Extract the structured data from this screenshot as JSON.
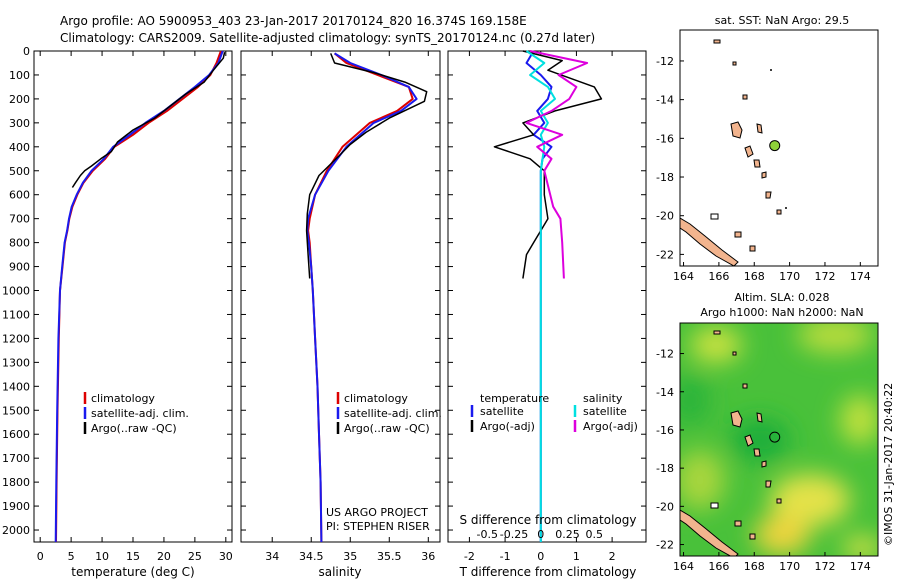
{
  "header": {
    "line1": "Argo profile: AO 5900953_403 23-Jan-2017 20170124_820 16.374S 169.158E",
    "line2": "Climatology: CARS2009. Satellite-adjusted climatology: synTS_20170124.nc (0.27d later)"
  },
  "colors": {
    "climatology": "#dd0000",
    "satellite": "#1a1aee",
    "argo": "#000000",
    "salinity_satellite": "#00e0e0",
    "salinity_argo": "#dd00dd",
    "land": "#f2b48e",
    "float_marker": "#8fd13a"
  },
  "chart_data": [
    {
      "type": "line",
      "id": "temperature",
      "xlabel": "temperature (deg C)",
      "xlim": [
        -1,
        31
      ],
      "ylim": [
        2050,
        0
      ],
      "xticks": [
        0,
        5,
        10,
        15,
        20,
        25,
        30
      ],
      "yticks": [
        0,
        100,
        200,
        300,
        400,
        500,
        600,
        700,
        800,
        900,
        1000,
        1100,
        1200,
        1300,
        1400,
        1500,
        1600,
        1700,
        1800,
        1900,
        2000
      ],
      "legend": [
        "climatology",
        "satellite-adj. clim.",
        "Argo(..raw -QC)"
      ],
      "series": [
        {
          "name": "climatology",
          "x": [
            29.2,
            28.5,
            27.5,
            25.5,
            23,
            20.5,
            17.5,
            15,
            12,
            10.5,
            8.5,
            7,
            6,
            5.2,
            4.7,
            4.4,
            4.0,
            3.6,
            3.2,
            3.0,
            2.8,
            2.65,
            2.55
          ],
          "y": [
            0,
            50,
            100,
            150,
            200,
            250,
            300,
            350,
            400,
            450,
            500,
            550,
            600,
            650,
            700,
            750,
            800,
            900,
            1000,
            1200,
            1500,
            1800,
            2050
          ]
        },
        {
          "name": "satellite-adj. clim.",
          "x": [
            29.5,
            28.8,
            27.3,
            25,
            22.5,
            20,
            17,
            14.5,
            11.8,
            10.3,
            8.3,
            6.9,
            5.9,
            5.1,
            4.65,
            4.35,
            3.95,
            3.55,
            3.2,
            2.95,
            2.75,
            2.6,
            2.5
          ],
          "y": [
            0,
            50,
            100,
            150,
            200,
            250,
            300,
            350,
            400,
            450,
            500,
            550,
            600,
            650,
            700,
            750,
            800,
            900,
            1000,
            1200,
            1500,
            1800,
            2050
          ]
        },
        {
          "name": "Argo(..raw -QC)",
          "x": [
            29.8,
            29.6,
            28,
            26.5,
            23.5,
            21,
            18.5,
            15,
            12.5,
            11.5,
            9.8,
            8.3,
            7.2,
            6.5,
            5.7,
            5.2
          ],
          "y": [
            5,
            30,
            80,
            130,
            180,
            230,
            280,
            330,
            380,
            420,
            450,
            480,
            500,
            520,
            550,
            570
          ]
        }
      ]
    },
    {
      "type": "line",
      "id": "salinity",
      "xlabel": "salinity",
      "xlim": [
        33.6,
        36.15
      ],
      "ylim": [
        2050,
        0
      ],
      "xticks": [
        34,
        34.5,
        35,
        35.5,
        36
      ],
      "legend": [
        "climatology",
        "satellite-adj. clim.",
        "Argo(..raw -QC)"
      ],
      "series": [
        {
          "name": "climatology",
          "x": [
            34.8,
            34.95,
            35.35,
            35.75,
            35.8,
            35.6,
            35.25,
            34.9,
            34.7,
            34.55,
            34.48,
            34.46,
            34.48,
            34.5,
            34.52,
            34.55,
            34.58,
            34.6,
            34.62,
            34.63
          ],
          "y": [
            10,
            50,
            100,
            150,
            200,
            250,
            300,
            400,
            500,
            600,
            700,
            750,
            800,
            900,
            1000,
            1200,
            1400,
            1600,
            1800,
            2050
          ]
        },
        {
          "name": "satellite-adj. clim.",
          "x": [
            34.8,
            35,
            35.4,
            35.75,
            35.85,
            35.65,
            35.3,
            34.95,
            34.72,
            34.55,
            34.46,
            34.45,
            34.47,
            34.5,
            34.52,
            34.55,
            34.58,
            34.6,
            34.62,
            34.63
          ],
          "y": [
            10,
            50,
            100,
            150,
            200,
            250,
            300,
            400,
            500,
            600,
            700,
            750,
            800,
            900,
            1000,
            1200,
            1400,
            1600,
            1800,
            2050
          ]
        },
        {
          "name": "Argo(..raw -QC)",
          "x": [
            34.75,
            34.8,
            35.3,
            35.7,
            35.98,
            35.95,
            35.5,
            35.2,
            35,
            34.85,
            34.6,
            34.48,
            34.45,
            34.44,
            34.46,
            34.48
          ],
          "y": [
            10,
            50,
            90,
            130,
            170,
            210,
            280,
            340,
            390,
            440,
            520,
            600,
            680,
            750,
            850,
            950
          ]
        }
      ]
    },
    {
      "type": "line",
      "id": "difference",
      "xlabel": "T difference from climatology",
      "xlabel2": "S difference from climatology",
      "xlim": [
        -2.6,
        2.95
      ],
      "ylim": [
        2050,
        0
      ],
      "xticks": [
        -2,
        -1,
        0,
        1,
        2
      ],
      "xticks2_labels": [
        "-0.5",
        "-0.25",
        "0",
        "0.25",
        "0.5"
      ],
      "legend_left_title": "temperature",
      "legend_right_title": "salinity",
      "legend": [
        "satellite",
        "Argo(-adj)",
        "satellite",
        "Argo(-adj)"
      ],
      "series": [
        {
          "name": "temperature satellite",
          "x": [
            -0.2,
            -0.4,
            0,
            0.3,
            0.2,
            -0.1,
            0.1,
            -0.2,
            0.3,
            0.05,
            0,
            0,
            0,
            0,
            0,
            0,
            0
          ],
          "y": [
            0,
            50,
            100,
            150,
            200,
            250,
            300,
            350,
            400,
            450,
            500,
            600,
            700,
            800,
            1000,
            1500,
            2050
          ]
        },
        {
          "name": "temperature Argo(-adj)",
          "x": [
            -0.5,
            0.6,
            0.2,
            1.5,
            1.7,
            0.4,
            -0.5,
            -0.2,
            -1.3,
            -0.3,
            0.1,
            0.1,
            0.2,
            0,
            -0.2,
            -0.4,
            -0.5
          ],
          "y": [
            0,
            40,
            80,
            150,
            200,
            250,
            300,
            350,
            400,
            450,
            500,
            600,
            700,
            750,
            800,
            850,
            950
          ]
        },
        {
          "name": "salinity satellite",
          "x": [
            -0.4,
            0.1,
            -0.3,
            0.2,
            0.4,
            0,
            0.2,
            0,
            0.1,
            0.05,
            0,
            0,
            0,
            0,
            0,
            0
          ],
          "y": [
            0,
            50,
            100,
            150,
            200,
            250,
            300,
            350,
            400,
            450,
            500,
            600,
            700,
            800,
            1000,
            2050
          ]
        },
        {
          "name": "salinity Argo(-adj)",
          "x": [
            -0.3,
            1.3,
            0.5,
            1.0,
            0.8,
            0.3,
            -0.4,
            0.6,
            -0.1,
            0.3,
            0.1,
            0.35,
            0.55,
            0.6,
            0.65
          ],
          "y": [
            0,
            50,
            100,
            150,
            200,
            250,
            300,
            350,
            400,
            450,
            500,
            650,
            700,
            800,
            950
          ]
        }
      ],
      "annotations": [
        "US ARGO PROJECT",
        "PI: STEPHEN RISER"
      ]
    },
    {
      "type": "map",
      "id": "sst-map",
      "title": "sat. SST: NaN Argo: 29.5",
      "xlim": [
        163.8,
        175
      ],
      "ylim": [
        -22.6,
        -10.4
      ],
      "xticks": [
        164,
        166,
        168,
        170,
        172,
        174
      ],
      "yticks": [
        -12,
        -14,
        -16,
        -18,
        -20,
        -22
      ],
      "float_position": {
        "lon": 169.158,
        "lat": -16.374
      }
    },
    {
      "type": "map",
      "id": "sla-map",
      "title1": "Altim. SLA: 0.028",
      "title2": "Argo h1000: NaN h2000: NaN",
      "xlim": [
        163.8,
        175
      ],
      "ylim": [
        -22.6,
        -10.4
      ],
      "xticks": [
        164,
        166,
        168,
        170,
        172,
        174
      ],
      "yticks": [
        -12,
        -14,
        -16,
        -18,
        -20,
        -22
      ],
      "float_position": {
        "lon": 169.158,
        "lat": -16.374
      }
    }
  ],
  "footer": {
    "credit": "©IMOS 31-Jan-2017 20:40:22"
  }
}
